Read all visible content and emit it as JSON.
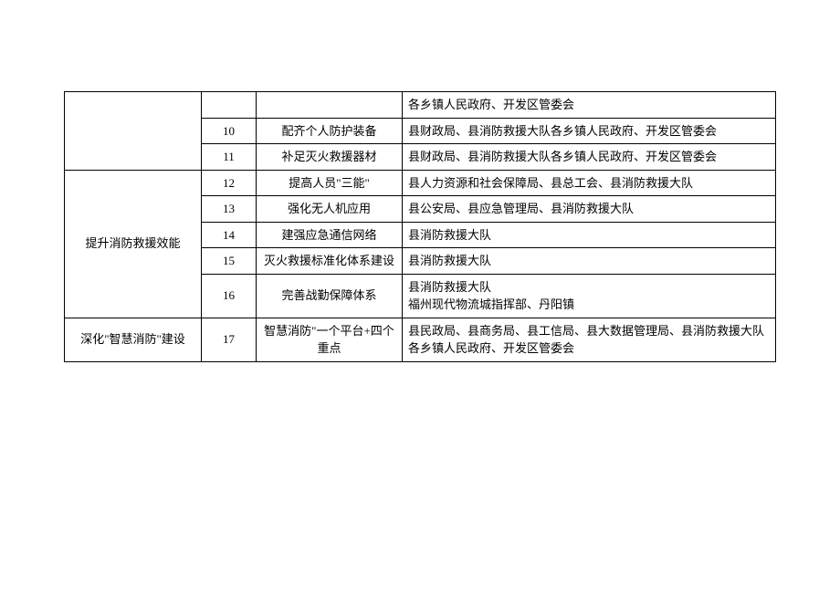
{
  "table": {
    "columns": {
      "widths": [
        150,
        60,
        160,
        "auto"
      ],
      "align": [
        "center",
        "center",
        "center",
        "left"
      ]
    },
    "border_color": "#000000",
    "background_color": "#ffffff",
    "font_size": 13,
    "line_height": 1.5,
    "rows": [
      {
        "category": "",
        "category_rowspan": 3,
        "num": "",
        "task": "",
        "dept": "各乡镇人民政府、开发区管委会"
      },
      {
        "num": "10",
        "task": "配齐个人防护装备",
        "dept": "县财政局、县消防救援大队各乡镇人民政府、开发区管委会"
      },
      {
        "num": "11",
        "task": "补足灭火救援器材",
        "dept": "县财政局、县消防救援大队各乡镇人民政府、开发区管委会"
      },
      {
        "category": "提升消防救援效能",
        "category_rowspan": 5,
        "num": "12",
        "task": "提高人员\"三能\"",
        "dept": "县人力资源和社会保障局、县总工会、县消防救援大队"
      },
      {
        "num": "13",
        "task": "强化无人机应用",
        "dept": "县公安局、县应急管理局、县消防救援大队"
      },
      {
        "num": "14",
        "task": "建强应急通信网络",
        "dept": "县消防救援大队"
      },
      {
        "num": "15",
        "task": "灭火救援标准化体系建设",
        "dept": "县消防救援大队"
      },
      {
        "num": "16",
        "task": "完善战勤保障体系",
        "dept": "县消防救援大队\n福州现代物流城指挥部、丹阳镇"
      },
      {
        "category": "深化\"智慧消防\"建设",
        "category_rowspan": 1,
        "num": "17",
        "task": "智慧消防\"一个平台+四个重点",
        "dept": "县民政局、县商务局、县工信局、县大数据管理局、县消防救援大队\n各乡镇人民政府、开发区管委会"
      }
    ]
  }
}
